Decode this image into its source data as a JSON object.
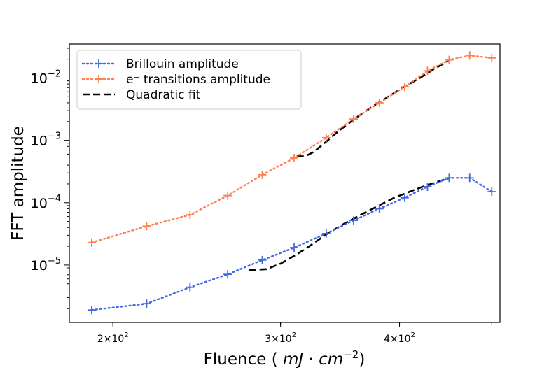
{
  "chart_data": {
    "type": "line",
    "xlabel": "Fluence ( mJ · cm⁻²)",
    "ylabel": "FFT amplitude",
    "x_scale": "log",
    "y_scale": "log",
    "xlim": [
      180,
      510
    ],
    "ylim": [
      1.2e-06,
      0.035
    ],
    "x_ticks": [
      {
        "value": 200,
        "base": "2×10",
        "exp": "2"
      },
      {
        "value": 300,
        "base": "3×10",
        "exp": "2"
      },
      {
        "value": 400,
        "base": "4×10",
        "exp": "2"
      }
    ],
    "y_ticks": [
      {
        "value": 1e-05,
        "base": "10",
        "exp": "−5"
      },
      {
        "value": 0.0001,
        "base": "10",
        "exp": "−4"
      },
      {
        "value": 0.001,
        "base": "10",
        "exp": "−3"
      },
      {
        "value": 0.01,
        "base": "10",
        "exp": "−2"
      }
    ],
    "grid": false,
    "legend_position": "top-left",
    "series": [
      {
        "name": "Brillouin amplitude",
        "color": "#4169e1",
        "style": "dotted-plus",
        "x": [
          190,
          217,
          241,
          264,
          287,
          310,
          335,
          358,
          381,
          405,
          428,
          451,
          474,
          500
        ],
        "y": [
          1.9e-06,
          2.4e-06,
          4.4e-06,
          7.1e-06,
          1.2e-05,
          1.9e-05,
          3.2e-05,
          5.2e-05,
          8e-05,
          0.00012,
          0.00018,
          0.00025,
          0.00025,
          0.00015
        ]
      },
      {
        "name": "e⁻ transitions amplitude",
        "color": "#ff7f50",
        "style": "dotted-plus",
        "x": [
          190,
          217,
          241,
          264,
          287,
          310,
          335,
          358,
          381,
          405,
          428,
          451,
          474,
          500
        ],
        "y": [
          2.3e-05,
          4.2e-05,
          6.4e-05,
          0.00013,
          0.00028,
          0.00052,
          0.0011,
          0.0022,
          0.004,
          0.0072,
          0.013,
          0.0195,
          0.023,
          0.021
        ]
      },
      {
        "name": "Quadratic fit",
        "color": "#000000",
        "style": "dashed",
        "segments": [
          {
            "x": [
              278,
              290,
              300,
              310,
              320,
              335,
              350,
              365,
              380,
              395,
              410,
              425,
              440,
              452
            ],
            "y": [
              8.3e-06,
              8.6e-06,
              1.05e-05,
              1.4e-05,
              1.9e-05,
              3.1e-05,
              4.6e-05,
              6.5e-05,
              8.9e-05,
              0.00012,
              0.00015,
              0.000185,
              0.00022,
              0.00025
            ]
          },
          {
            "x": [
              312,
              318,
              325,
              335,
              345,
              360,
              375,
              390,
              405,
              420,
              435,
              452
            ],
            "y": [
              0.00056,
              0.00055,
              0.00065,
              0.00095,
              0.0014,
              0.0023,
              0.0035,
              0.0051,
              0.0073,
              0.01,
              0.014,
              0.0195
            ]
          }
        ]
      }
    ]
  }
}
